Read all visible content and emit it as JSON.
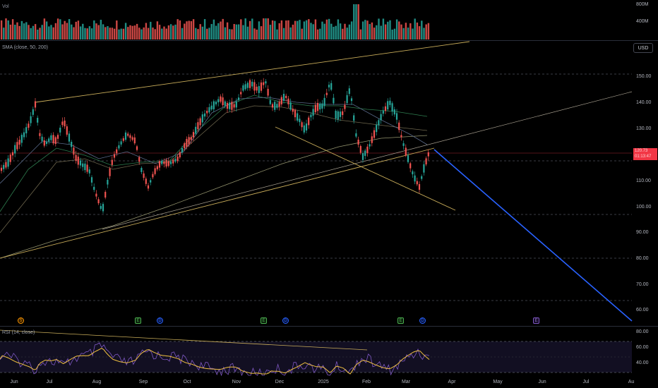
{
  "volume": {
    "title": "Vol",
    "scale_labels": [
      "800M",
      "400M"
    ],
    "bars_up_color": "#26a69a",
    "bars_down_color": "#ef5350"
  },
  "main": {
    "indicator_title": "SMA (close, 50, 200)",
    "currency_button": "USD",
    "price_axis": [
      "150.00",
      "140.00",
      "130.00",
      "110.00",
      "100.00",
      "90.00",
      "80.00",
      "70.00",
      "60.00"
    ],
    "last_price_tag": {
      "price": "120.73",
      "countdown": "01:13:47"
    },
    "up_color": "#26a69a",
    "down_color": "#ef5350",
    "trendline_color": "#c9ad5a",
    "projection_color": "#2962ff",
    "sma_fast_color": "#2e7d4f",
    "sma_slow_color": "#b9b98a"
  },
  "events": [
    {
      "icon": "S",
      "kind": "split"
    },
    {
      "icon": "E",
      "kind": "earnings"
    },
    {
      "icon": "D",
      "kind": "dividend"
    },
    {
      "icon": "E",
      "kind": "earnings"
    },
    {
      "icon": "D",
      "kind": "dividend"
    },
    {
      "icon": "E",
      "kind": "earnings"
    },
    {
      "icon": "D",
      "kind": "dividend"
    },
    {
      "icon": "E",
      "kind": "earnings-upcoming"
    }
  ],
  "rsi": {
    "title": "RSI (14, close)",
    "levels": [
      "80.00",
      "60.00",
      "40.00"
    ],
    "line_color": "#7e57c2",
    "ma_color": "#f0c040"
  },
  "time_axis": [
    "Jun",
    "Jul",
    "Aug",
    "Sep",
    "Oct",
    "Nov",
    "Dec",
    "2025",
    "Feb",
    "Mar",
    "Apr",
    "May",
    "Jun",
    "Jul",
    "Au"
  ]
}
